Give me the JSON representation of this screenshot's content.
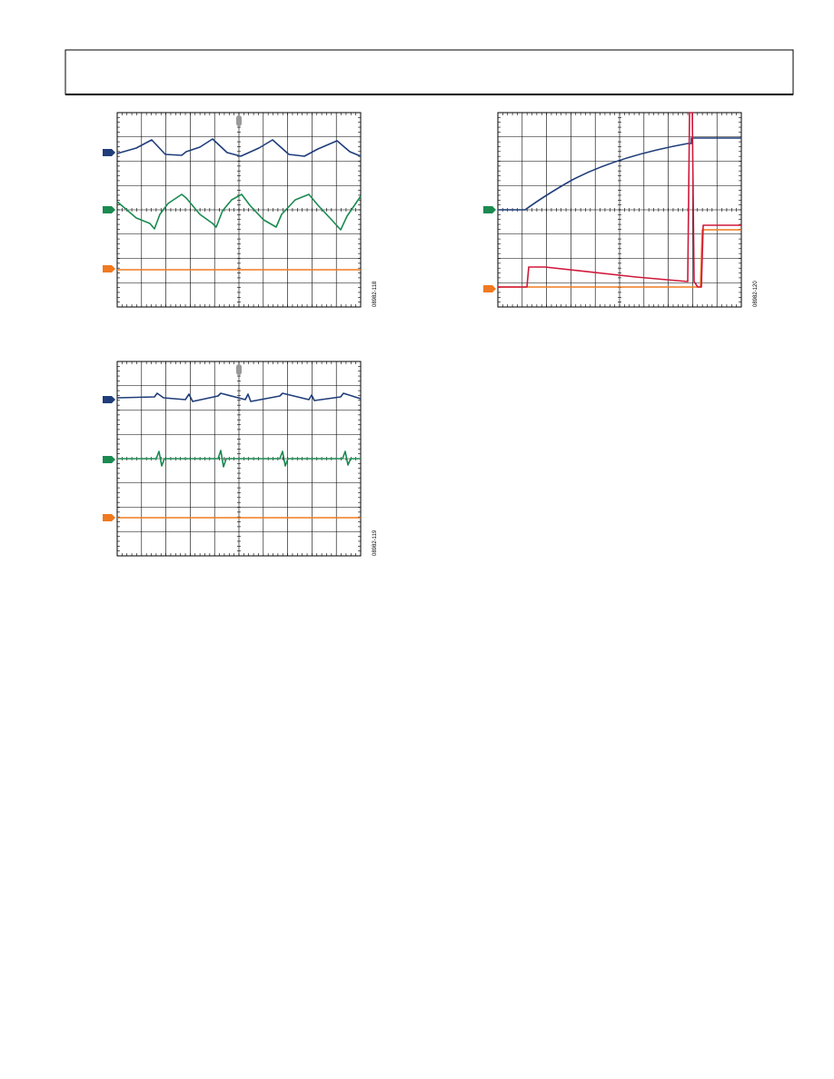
{
  "figures": [
    {
      "id": "08982-118"
    },
    {
      "id": "08982-119"
    },
    {
      "id": "08982-120"
    }
  ]
}
